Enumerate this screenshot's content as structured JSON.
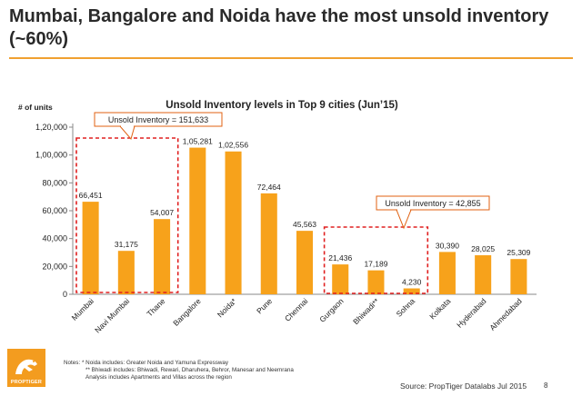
{
  "slide": {
    "title": "Mumbai, Bangalore and Noida have the most unsold inventory (~60%)",
    "page_number": "8",
    "source": "Source: PropTiger Datalabs Jul 2015",
    "notes": [
      "Notes: * Noida includes: Greater Noida and Yamuna Expressway",
      "** Bhiwadi includes: Bhiwadi, Rewari, Dharuhera, Behror, Manesar and Neemrana",
      "Analysis includes Apartments and Villas across the region"
    ],
    "logo_text": "PROPTIGER",
    "logo_icon": "tiger-icon"
  },
  "colors": {
    "bar": "#f7a21b",
    "accent": "#f0a030",
    "callout_border": "#e06010",
    "highlight_box": "#e02020"
  },
  "chart_data": {
    "type": "bar",
    "title": "Unsold Inventory levels in Top 9 cities (Jun’15)",
    "ylabel": "# of units",
    "xlabel": "",
    "ylim": [
      0,
      120000
    ],
    "yticks": [
      0,
      20000,
      40000,
      60000,
      80000,
      100000,
      120000
    ],
    "ytick_labels": [
      "0",
      "20,000",
      "40,000",
      "60,000",
      "80,000",
      "1,00,000",
      "1,20,000"
    ],
    "categories": [
      "Mumbai",
      "Navi Mumbai",
      "Thane",
      "Bangalore",
      "Noida*",
      "Pune",
      "Chennai",
      "Gurgaon",
      "Bhiwadi**",
      "Sohna",
      "Kolkata",
      "Hyderabad",
      "Ahmedabad"
    ],
    "values": [
      66451,
      31175,
      54007,
      105281,
      102556,
      72464,
      45563,
      21436,
      17189,
      4230,
      30390,
      28025,
      25309
    ],
    "value_labels": [
      "66,451",
      "31,175",
      "54,007",
      "1,05,281",
      "1,02,556",
      "72,464",
      "45,563",
      "21,436",
      "17,189",
      "4,230",
      "30,390",
      "28,025",
      "25,309"
    ],
    "grid": false,
    "legend": "none",
    "annotations": [
      {
        "text": "Unsold Inventory = 151,633",
        "group": [
          "Mumbai",
          "Navi Mumbai",
          "Thane"
        ]
      },
      {
        "text": "Unsold Inventory = 42,855",
        "group": [
          "Gurgaon",
          "Bhiwadi**",
          "Sohna"
        ]
      }
    ]
  }
}
